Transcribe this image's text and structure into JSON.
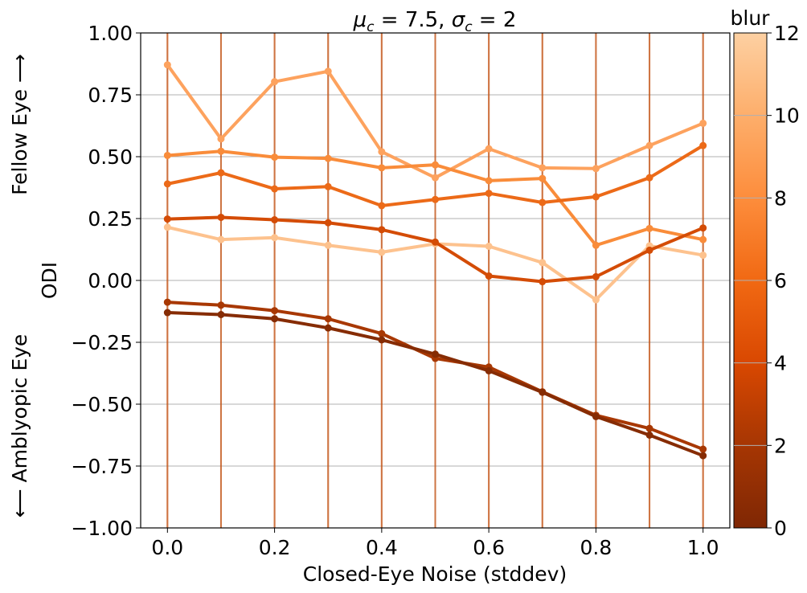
{
  "chart_data": {
    "type": "line",
    "title": "μ_c = 7.5, σ_c = 2",
    "xlabel": "Closed-Eye Noise (stddev)",
    "ylabel": "ODI",
    "side_label_top": "Fellow Eye ⟶",
    "side_label_bottom": "⟵ Amblyopic Eye",
    "xlim": [
      -0.05,
      1.05
    ],
    "ylim": [
      -1.0,
      1.0
    ],
    "x_ticks": [
      "0.0",
      "0.2",
      "0.4",
      "0.6",
      "0.8",
      "1.0"
    ],
    "y_ticks": [
      "−1.00",
      "−0.75",
      "−0.50",
      "−0.25",
      "0.00",
      "0.25",
      "0.50",
      "0.75",
      "1.00"
    ],
    "grid": "horizontal",
    "x": [
      0.0,
      0.1,
      0.2,
      0.3,
      0.4,
      0.5,
      0.6,
      0.7,
      0.8,
      0.9,
      1.0
    ],
    "colorbar": {
      "label": "blur",
      "range": [
        0,
        12
      ],
      "ticks": [
        "0",
        "2",
        "4",
        "6",
        "8",
        "10",
        "12"
      ],
      "colormap": "Oranges",
      "stops": [
        "#7f2704",
        "#a63603",
        "#d94801",
        "#f16913",
        "#fd8d3c",
        "#fdae6b",
        "#fdd0a2"
      ]
    },
    "series": [
      {
        "blur": 12,
        "color": "#fdc28e",
        "values": [
          0.215,
          0.165,
          0.173,
          0.142,
          0.114,
          0.148,
          0.138,
          0.072,
          -0.078,
          0.14,
          0.102
        ]
      },
      {
        "blur": 10,
        "color": "#fda25e",
        "values": [
          0.871,
          0.572,
          0.803,
          0.845,
          0.52,
          0.415,
          0.532,
          0.455,
          0.452,
          0.545,
          0.635
        ]
      },
      {
        "blur": 8,
        "color": "#f98c3a",
        "values": [
          0.505,
          0.522,
          0.498,
          0.493,
          0.455,
          0.467,
          0.403,
          0.412,
          0.142,
          0.21,
          0.165
        ]
      },
      {
        "blur": 6,
        "color": "#ec6a18",
        "values": [
          0.39,
          0.435,
          0.37,
          0.379,
          0.302,
          0.327,
          0.352,
          0.315,
          0.338,
          0.415,
          0.545
        ]
      },
      {
        "blur": 4,
        "color": "#d44c06",
        "values": [
          0.248,
          0.255,
          0.245,
          0.233,
          0.205,
          0.155,
          0.018,
          -0.005,
          0.015,
          0.122,
          0.212
        ]
      },
      {
        "blur": 2,
        "color": "#a83803",
        "values": [
          -0.088,
          -0.1,
          -0.122,
          -0.155,
          -0.215,
          -0.315,
          -0.35,
          -0.45,
          -0.545,
          -0.598,
          -0.682
        ]
      },
      {
        "blur": 0,
        "color": "#862c04",
        "values": [
          -0.13,
          -0.138,
          -0.155,
          -0.192,
          -0.24,
          -0.298,
          -0.365,
          -0.452,
          -0.55,
          -0.625,
          -0.708
        ]
      }
    ]
  }
}
